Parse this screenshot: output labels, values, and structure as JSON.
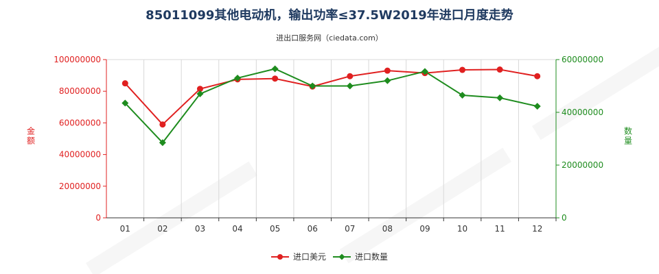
{
  "chart_data": {
    "type": "line",
    "title": "85011099其他电动机，输出功率≤37.5W2019年进口月度走势",
    "subtitle": "进出口服务网（ciedata.com）",
    "categories": [
      "01",
      "02",
      "03",
      "04",
      "05",
      "06",
      "07",
      "08",
      "09",
      "10",
      "11",
      "12"
    ],
    "y_left": {
      "label": "金额",
      "ylim": [
        0,
        100000000
      ],
      "ticks": [
        "0",
        "20000000",
        "40000000",
        "60000000",
        "80000000",
        "100000000"
      ],
      "color": "#e02020"
    },
    "y_right": {
      "label": "数量",
      "ylim": [
        0,
        60000000
      ],
      "ticks": [
        "0",
        "20000000",
        "40000000",
        "60000000"
      ],
      "color": "#1e8c1e"
    },
    "series": [
      {
        "name": "进口美元",
        "axis": "left",
        "color": "#e02020",
        "values": [
          85000000,
          59000000,
          81500000,
          87500000,
          88000000,
          83000000,
          89500000,
          93000000,
          91500000,
          93500000,
          93700000,
          89500000
        ]
      },
      {
        "name": "进口数量",
        "axis": "right",
        "color": "#1e8c1e",
        "values": [
          43500000,
          28500000,
          47000000,
          53000000,
          56500000,
          50000000,
          50000000,
          52000000,
          55500000,
          46500000,
          45500000,
          42300000
        ]
      }
    ],
    "grid": "vertical",
    "legend_position": "bottom-center"
  }
}
